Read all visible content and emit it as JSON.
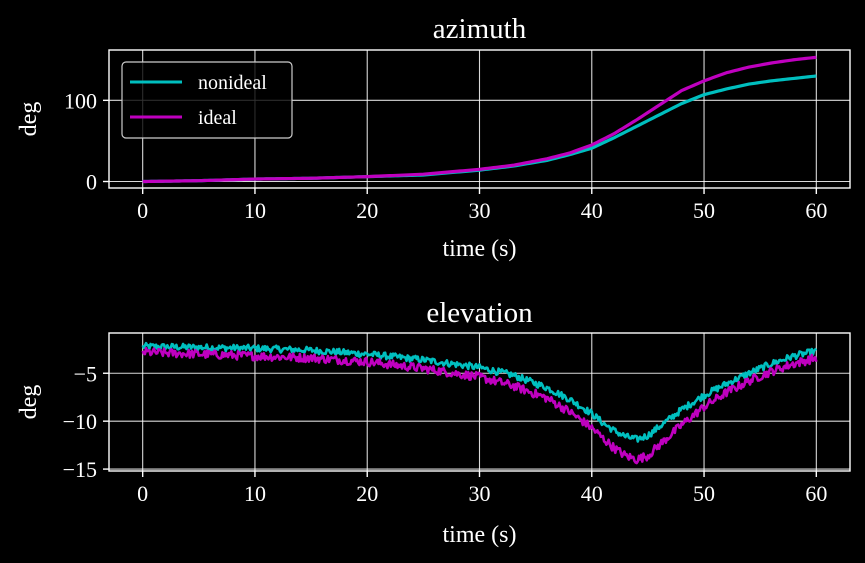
{
  "colors": {
    "background": "#000000",
    "nonideal": "#00bfbf",
    "ideal": "#bf00bf",
    "foreground": "#ffffff"
  },
  "chart_data": [
    {
      "type": "line",
      "title": "azimuth",
      "xlabel": "time (s)",
      "ylabel": "deg",
      "xlim": [
        -3,
        63
      ],
      "ylim": [
        -8,
        162
      ],
      "xticks": [
        0,
        10,
        20,
        30,
        40,
        50,
        60
      ],
      "yticks": [
        0,
        100
      ],
      "grid": true,
      "legend": {
        "placement": "upper-left",
        "entries": [
          "nonideal",
          "ideal"
        ]
      },
      "x": [
        0,
        5,
        10,
        15,
        20,
        25,
        30,
        33,
        36,
        38,
        40,
        42,
        44,
        46,
        48,
        50,
        52,
        54,
        56,
        58,
        60
      ],
      "series": [
        {
          "name": "nonideal",
          "color": "#00bfbf",
          "values": [
            0,
            1,
            3,
            4,
            6,
            8,
            14,
            19,
            26,
            33,
            41,
            54,
            68,
            82,
            96,
            107,
            114,
            120,
            124,
            127,
            130
          ]
        },
        {
          "name": "ideal",
          "color": "#bf00bf",
          "values": [
            0,
            1,
            3,
            4,
            6,
            9,
            15,
            20,
            28,
            35,
            45,
            59,
            76,
            94,
            112,
            124,
            134,
            141,
            146,
            150,
            153
          ]
        }
      ]
    },
    {
      "type": "line",
      "title": "elevation",
      "xlabel": "time (s)",
      "ylabel": "deg",
      "xlim": [
        -3,
        63
      ],
      "ylim": [
        -15.2,
        -0.8
      ],
      "xticks": [
        0,
        10,
        20,
        30,
        40,
        50,
        60
      ],
      "yticks": [
        -5,
        -10,
        -15
      ],
      "ytick_labels": [
        "−5",
        "−10",
        "−15"
      ],
      "grid": true,
      "x": [
        0,
        5,
        10,
        15,
        20,
        25,
        30,
        33,
        36,
        38,
        40,
        41,
        42,
        43,
        44,
        45,
        46,
        48,
        50,
        52,
        54,
        56,
        58,
        60
      ],
      "series": [
        {
          "name": "nonideal",
          "color": "#00bfbf",
          "noise": 0.35,
          "values": [
            -2.2,
            -2.3,
            -2.4,
            -2.6,
            -3.0,
            -3.6,
            -4.4,
            -5.2,
            -6.5,
            -7.7,
            -9.2,
            -10.2,
            -11.0,
            -11.6,
            -11.9,
            -11.5,
            -10.6,
            -8.8,
            -7.3,
            -6.1,
            -5.0,
            -4.0,
            -3.2,
            -2.7
          ]
        },
        {
          "name": "ideal",
          "color": "#bf00bf",
          "noise": 0.45,
          "values": [
            -2.8,
            -3.0,
            -3.2,
            -3.4,
            -3.8,
            -4.5,
            -5.4,
            -6.3,
            -7.6,
            -9.0,
            -10.7,
            -11.8,
            -12.8,
            -13.6,
            -14.0,
            -13.6,
            -12.5,
            -10.4,
            -8.5,
            -7.0,
            -5.8,
            -4.8,
            -4.0,
            -3.4
          ]
        }
      ]
    }
  ]
}
